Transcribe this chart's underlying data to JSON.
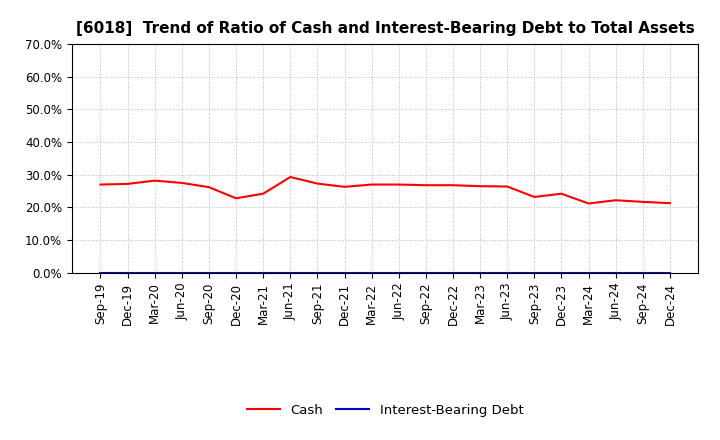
{
  "title": "[6018]  Trend of Ratio of Cash and Interest-Bearing Debt to Total Assets",
  "x_labels": [
    "Sep-19",
    "Dec-19",
    "Mar-20",
    "Jun-20",
    "Sep-20",
    "Dec-20",
    "Mar-21",
    "Jun-21",
    "Sep-21",
    "Dec-21",
    "Mar-22",
    "Jun-22",
    "Sep-22",
    "Dec-22",
    "Mar-23",
    "Jun-23",
    "Sep-23",
    "Dec-23",
    "Mar-24",
    "Jun-24",
    "Sep-24",
    "Dec-24"
  ],
  "cash": [
    0.27,
    0.272,
    0.282,
    0.275,
    0.262,
    0.228,
    0.242,
    0.293,
    0.273,
    0.263,
    0.27,
    0.27,
    0.268,
    0.268,
    0.265,
    0.264,
    0.232,
    0.242,
    0.212,
    0.222,
    0.217,
    0.213
  ],
  "interest_bearing_debt": [
    0.0,
    0.0,
    0.0,
    0.0,
    0.0,
    0.0,
    0.0,
    0.0,
    0.0,
    0.0,
    0.0,
    0.0,
    0.0,
    0.0,
    0.0,
    0.0,
    0.0,
    0.0,
    0.0,
    0.0,
    0.0,
    0.0
  ],
  "cash_color": "#ff0000",
  "debt_color": "#0000cd",
  "background_color": "#ffffff",
  "grid_color": "#bbbbbb",
  "ylim": [
    0.0,
    0.7
  ],
  "yticks": [
    0.0,
    0.1,
    0.2,
    0.3,
    0.4,
    0.5,
    0.6,
    0.7
  ],
  "legend_cash": "Cash",
  "legend_debt": "Interest-Bearing Debt",
  "title_fontsize": 11,
  "tick_fontsize": 8.5,
  "legend_fontsize": 9.5
}
